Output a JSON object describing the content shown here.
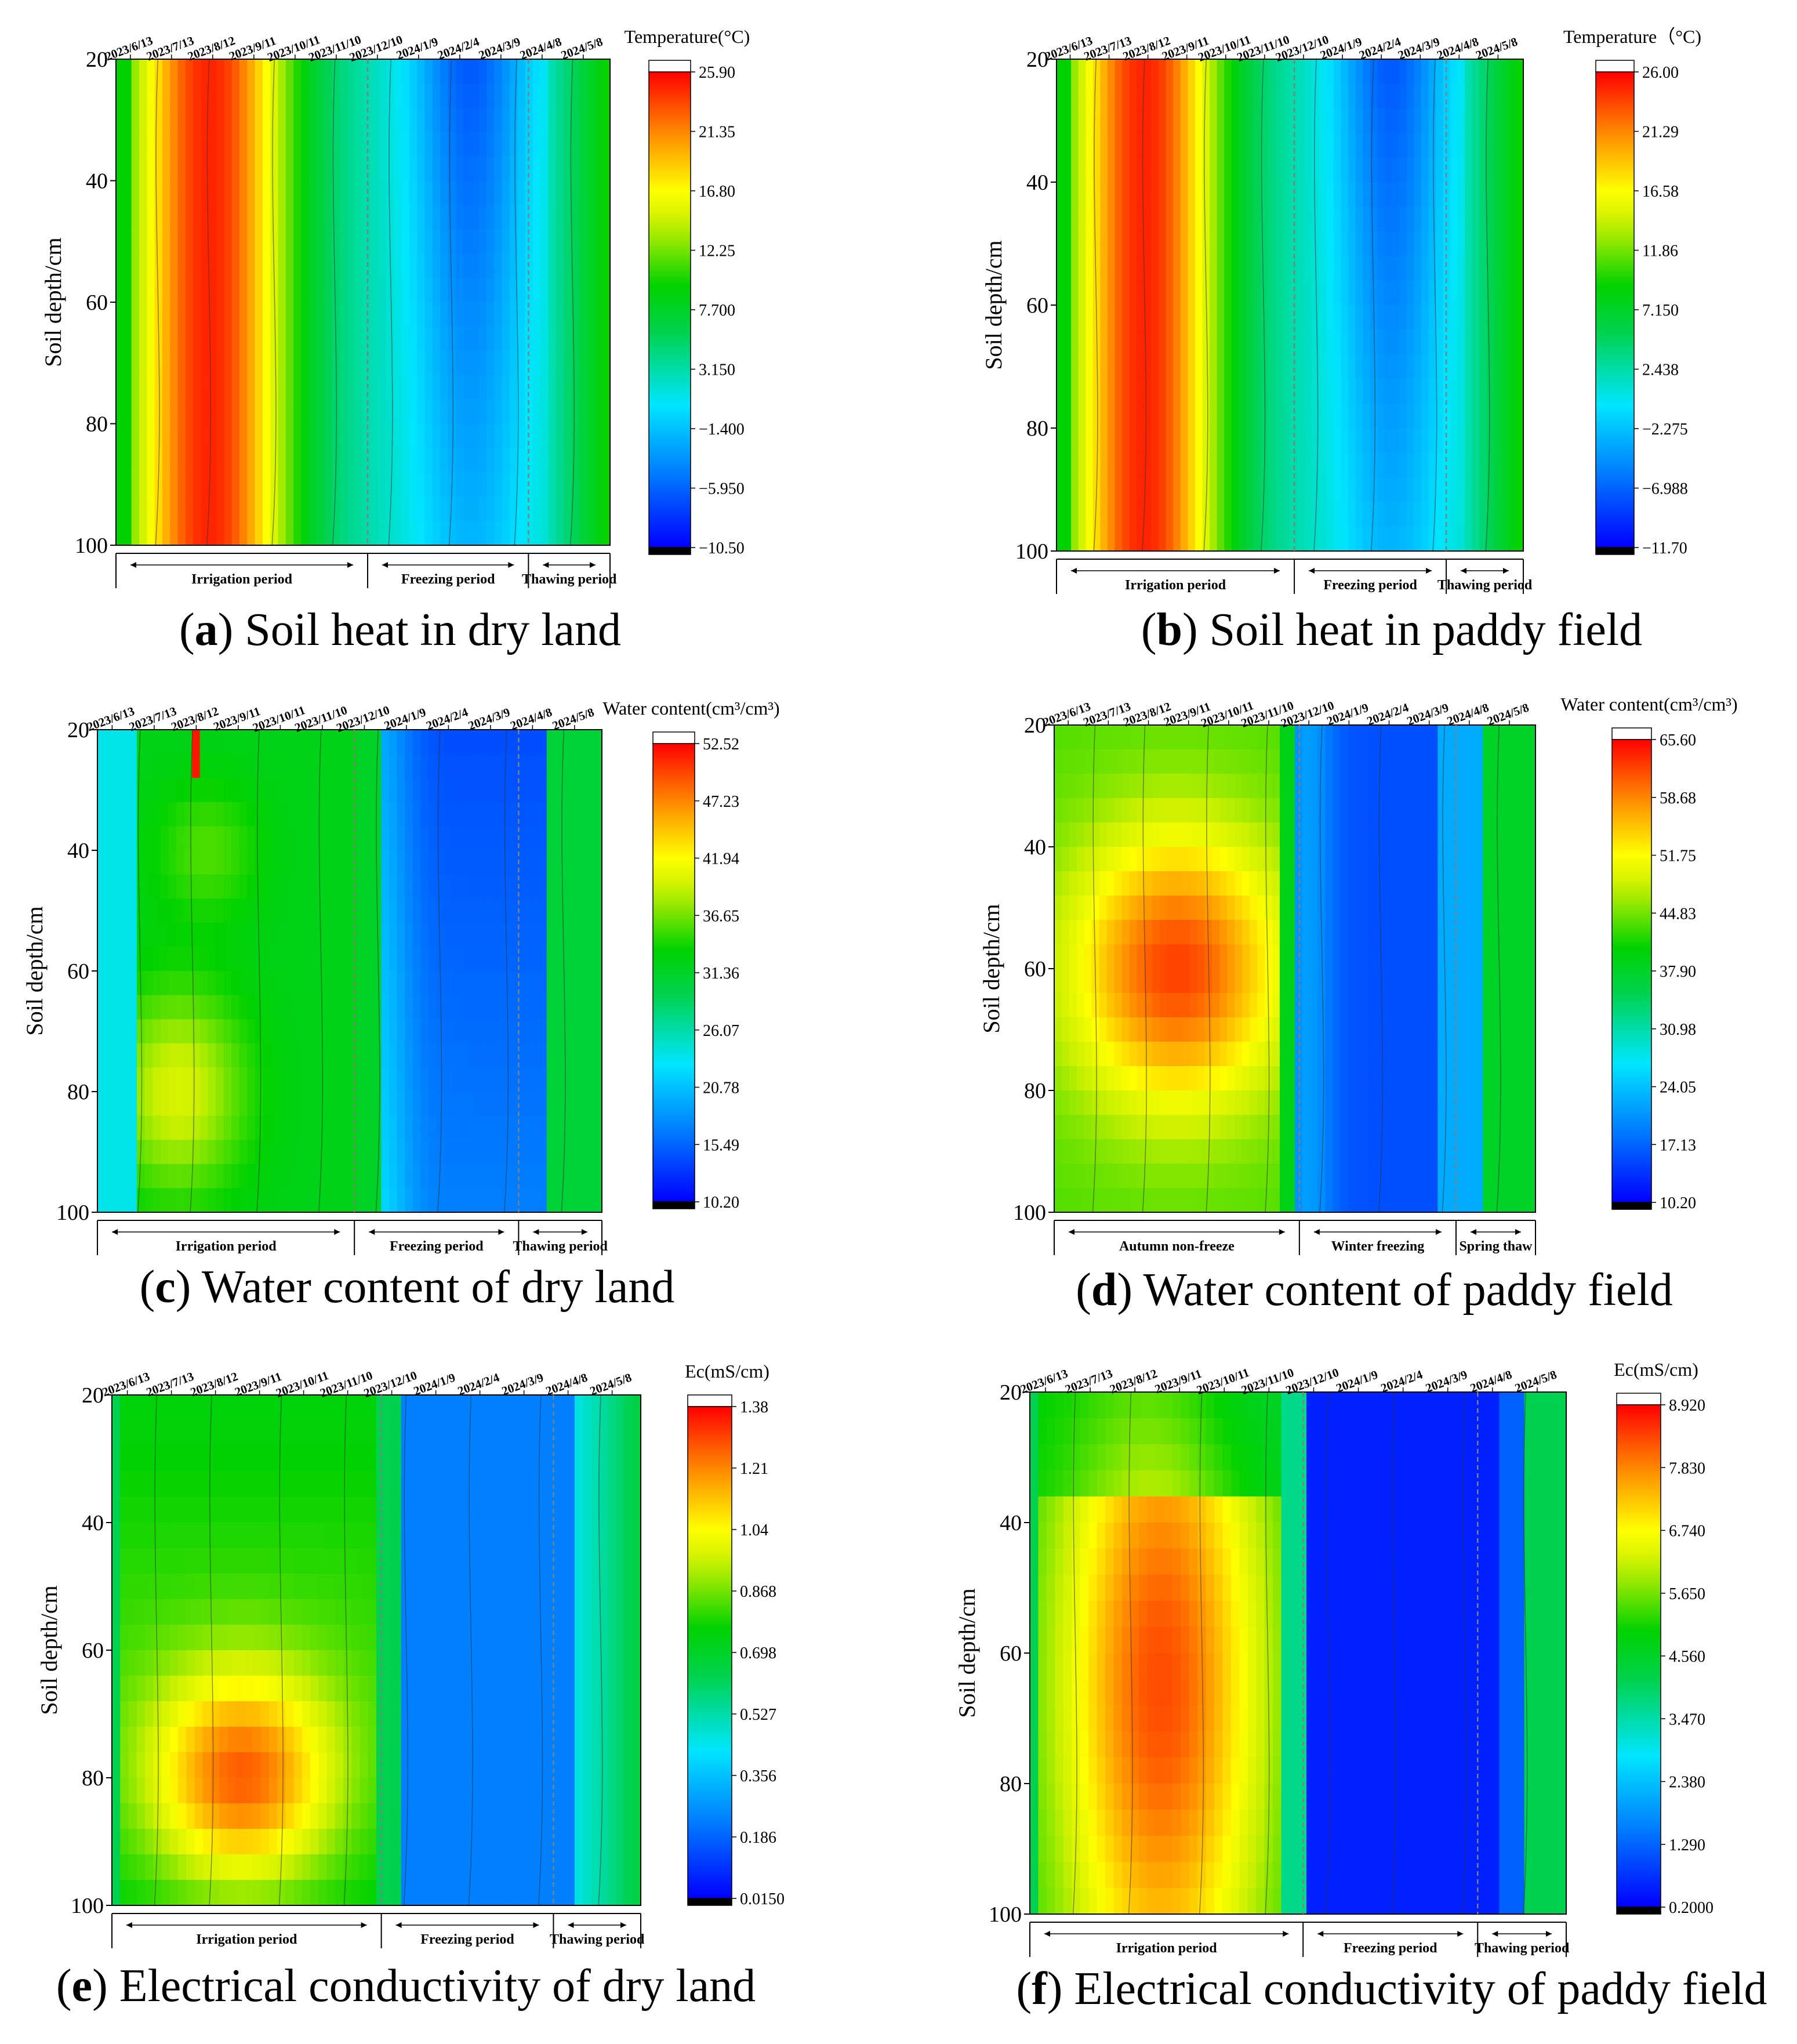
{
  "dates": [
    "2023/6/13",
    "2023/7/13",
    "2023/8/12",
    "2023/9/11",
    "2023/10/11",
    "2023/11/10",
    "2023/12/10",
    "2024/1/9",
    "2024/2/4",
    "2024/3/9",
    "2024/4/8",
    "2024/5/8"
  ],
  "y_ticks": [
    "20",
    "40",
    "60",
    "80",
    "100"
  ],
  "ylabel": "Soil  depth/cm",
  "colors": {
    "low": "#0000ff",
    "mid_low": "#00e5ff",
    "mid": "#00d200",
    "mid_high": "#ffff00",
    "high": "#ff0000",
    "below": "#000000",
    "above": "#ffffff"
  },
  "chart_data": [
    {
      "id": "a",
      "type": "heatmap",
      "caption_letter": "a",
      "caption_text": " Soil heat in dry land",
      "title": "Temperature(°C)",
      "ylabel": "Soil  depth/cm",
      "ylim": [
        20,
        100
      ],
      "colorbar": {
        "min": -10.5,
        "max": 25.9,
        "labels": [
          "25.90",
          "21.35",
          "16.80",
          "12.25",
          "7.700",
          "3.150",
          "−1.400",
          "−5.950",
          "−10.50"
        ]
      },
      "periods": [
        {
          "label": "Irrigation period",
          "from": 0,
          "to": 5.4
        },
        {
          "label": "Freezing period",
          "from": 5.4,
          "to": 8.85
        },
        {
          "label": "Thawing period",
          "from": 8.85,
          "to": 10.6
        }
      ],
      "kind": "temp"
    },
    {
      "id": "b",
      "type": "heatmap",
      "caption_letter": "b",
      "caption_text": " Soil heat in paddy field",
      "title": "Temperature（°C)",
      "ylabel": "Soil  depth/cm",
      "ylim": [
        20,
        100
      ],
      "colorbar": {
        "min": -11.7,
        "max": 26.0,
        "labels": [
          "26.00",
          "21.29",
          "16.58",
          "11.86",
          "7.150",
          "2.438",
          "−2.275",
          "−6.988",
          "−11.70"
        ]
      },
      "periods": [
        {
          "label": "Irrigation period",
          "from": 0,
          "to": 5.4
        },
        {
          "label": "Freezing period",
          "from": 5.4,
          "to": 8.85
        },
        {
          "label": "Thawing period",
          "from": 8.85,
          "to": 10.6
        }
      ],
      "kind": "temp"
    },
    {
      "id": "c",
      "type": "heatmap",
      "caption_letter": "c",
      "caption_text": " Water content of dry land",
      "title": "Water content(cm³/cm³)",
      "ylabel": "Soil  depth/cm",
      "ylim": [
        20,
        100
      ],
      "colorbar": {
        "min": 10.2,
        "max": 52.52,
        "labels": [
          "52.52",
          "47.23",
          "41.94",
          "36.65",
          "31.36",
          "26.07",
          "20.78",
          "15.49",
          "10.20"
        ]
      },
      "periods": [
        {
          "label": "Irrigation period",
          "from": 0,
          "to": 5.4
        },
        {
          "label": "Freezing period",
          "from": 5.4,
          "to": 8.85
        },
        {
          "label": "Thawing period",
          "from": 8.85,
          "to": 10.6
        }
      ],
      "kind": "water_dry"
    },
    {
      "id": "d",
      "type": "heatmap",
      "caption_letter": "d",
      "caption_text": " Water content of paddy field",
      "title": "Water content(cm³/cm³)",
      "ylabel": "Soil  depth/cm",
      "ylim": [
        20,
        100
      ],
      "colorbar": {
        "min": 10.2,
        "max": 65.6,
        "labels": [
          "65.60",
          "58.68",
          "51.75",
          "44.83",
          "37.90",
          "30.98",
          "24.05",
          "17.13",
          "10.20"
        ]
      },
      "periods": [
        {
          "label": "Autumn non-freeze",
          "from": 0,
          "to": 5.4
        },
        {
          "label": "Winter freezing",
          "from": 5.4,
          "to": 8.85
        },
        {
          "label": "Spring thaw",
          "from": 8.85,
          "to": 10.6
        }
      ],
      "kind": "water_paddy"
    },
    {
      "id": "e",
      "type": "heatmap",
      "caption_letter": "e",
      "caption_text": " Electrical conductivity of dry land",
      "title": "Ec(mS/cm)",
      "ylabel": "Soil  depth/cm",
      "ylim": [
        20,
        100
      ],
      "colorbar": {
        "min": 0.015,
        "max": 1.38,
        "labels": [
          "1.38",
          "1.21",
          "1.04",
          "0.868",
          "0.698",
          "0.527",
          "0.356",
          "0.186",
          "0.0150"
        ]
      },
      "periods": [
        {
          "label": "Irrigation period",
          "from": 0,
          "to": 5.4
        },
        {
          "label": "Freezing period",
          "from": 5.4,
          "to": 8.85
        },
        {
          "label": "Thawing period",
          "from": 8.85,
          "to": 10.6
        }
      ],
      "kind": "ec_dry"
    },
    {
      "id": "f",
      "type": "heatmap",
      "caption_letter": "f",
      "caption_text": " Electrical conductivity of paddy field",
      "title": "Ec(mS/cm)",
      "ylabel": "Soil  depth/cm",
      "ylim": [
        20,
        100
      ],
      "colorbar": {
        "min": 0.2,
        "max": 8.92,
        "labels": [
          "8.920",
          "7.830",
          "6.740",
          "5.650",
          "4.560",
          "3.470",
          "2.380",
          "1.290",
          "0.2000"
        ]
      },
      "periods": [
        {
          "label": "Irrigation period",
          "from": 0,
          "to": 5.4
        },
        {
          "label": "Freezing period",
          "from": 5.4,
          "to": 8.85
        },
        {
          "label": "Thawing period",
          "from": 8.85,
          "to": 10.6
        }
      ],
      "kind": "ec_paddy"
    }
  ]
}
